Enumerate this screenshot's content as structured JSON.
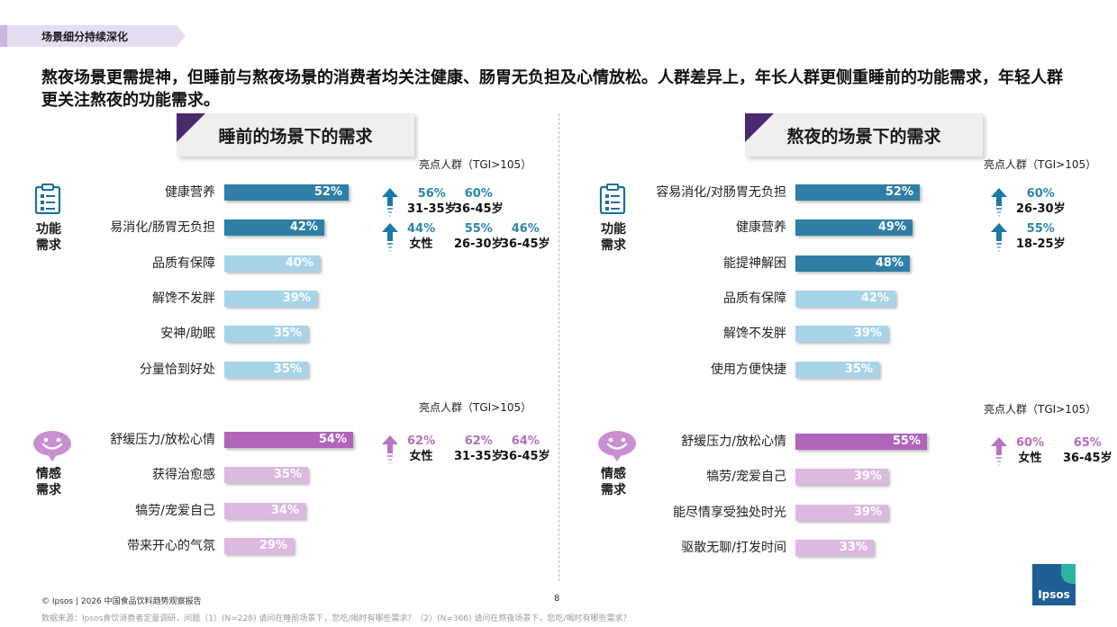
{
  "section_tag": "场景细分持续深化",
  "headline": "熬夜场景更需提神，但睡前与熬夜场景的消费者均关注健康、肠胃无负担及心情放松。人群差异上，年长人群更侧重睡前的功能需求，年轻人群更关注熬夜的功能需求。",
  "colors": {
    "functional_dark": "#2e7ea6",
    "functional_light": "#a8d4ea",
    "emotional_dark": "#b065bb",
    "emotional_light": "#dcb9df",
    "highlight_blue": "#2a86ad",
    "highlight_purple": "#b370bd",
    "arrow_blue": "#1d79a8",
    "arrow_purple": "#b874c2"
  },
  "icons": {
    "functional": "clipboard-icon",
    "emotional": "smile-chat-icon",
    "highlight": "up-arrow-icon"
  },
  "chart_data": [
    {
      "type": "bar",
      "title": "睡前的场景下的需求",
      "tgi_label_functional": "亮点人群（TGI>105）",
      "tgi_label_emotional": "亮点人群（TGI>105）",
      "groups": [
        {
          "name": "功能需求",
          "categories": [
            "健康营养",
            "易消化/肠胃无负担",
            "品质有保障",
            "解馋不发胖",
            "安神/助眠",
            "分量恰到好处"
          ],
          "values": [
            52,
            42,
            40,
            39,
            35,
            35
          ],
          "shading": [
            "dark",
            "dark",
            "light",
            "light",
            "light",
            "light"
          ],
          "highlights": [
            [
              {
                "pct": "56%",
                "group": "31-35岁"
              },
              {
                "pct": "60%",
                "group": "36-45岁"
              }
            ],
            [
              {
                "pct": "44%",
                "group": "女性"
              },
              {
                "pct": "55%",
                "group": "26-30岁"
              },
              {
                "pct": "46%",
                "group": "36-45岁"
              }
            ],
            [],
            [],
            [],
            []
          ]
        },
        {
          "name": "情感需求",
          "categories": [
            "舒缓压力/放松心情",
            "获得治愈感",
            "犒劳/宠爱自己",
            "带来开心的气氛"
          ],
          "values": [
            54,
            35,
            34,
            29
          ],
          "shading": [
            "dark",
            "light",
            "light",
            "light"
          ],
          "highlights": [
            [
              {
                "pct": "62%",
                "group": "女性"
              },
              {
                "pct": "62%",
                "group": "31-35岁"
              },
              {
                "pct": "64%",
                "group": "36-45岁"
              }
            ],
            [],
            [],
            []
          ]
        }
      ]
    },
    {
      "type": "bar",
      "title": "熬夜的场景下的需求",
      "tgi_label_functional": "亮点人群（TGI>105）",
      "tgi_label_emotional": "亮点人群（TGI>105）",
      "groups": [
        {
          "name": "功能需求",
          "categories": [
            "容易消化/对肠胃无负担",
            "健康营养",
            "能提神解困",
            "品质有保障",
            "解馋不发胖",
            "使用方便快捷"
          ],
          "values": [
            52,
            49,
            48,
            42,
            39,
            35
          ],
          "shading": [
            "dark",
            "dark",
            "dark",
            "light",
            "light",
            "light"
          ],
          "highlights": [
            [
              {
                "pct": "60%",
                "group": "26-30岁"
              }
            ],
            [
              {
                "pct": "55%",
                "group": "18-25岁"
              }
            ],
            [],
            [],
            [],
            []
          ]
        },
        {
          "name": "情感需求",
          "categories": [
            "舒缓压力/放松心情",
            "犒劳/宠爱自己",
            "能尽情享受独处时光",
            "驱散无聊/打发时间"
          ],
          "values": [
            55,
            39,
            39,
            33
          ],
          "shading": [
            "dark",
            "light",
            "light",
            "light"
          ],
          "highlights": [
            [
              {
                "pct": "60%",
                "group": "女性"
              },
              {
                "pct": "65%",
                "group": "36-45岁"
              }
            ],
            [],
            [],
            []
          ]
        }
      ]
    }
  ],
  "footer": {
    "copyright": "© Ipsos | 2026 中国食品饮料趋势观察报告",
    "page": "8",
    "source": "数据来源：Ipsos食饮消费者定量调研，问题（1）(N=228) 请问在睡前场景下，您吃/喝时有哪些需求？（2）(N=366) 请问在熬夜场景下，您吃/喝时有哪些需求？",
    "logo": "Ipsos"
  }
}
